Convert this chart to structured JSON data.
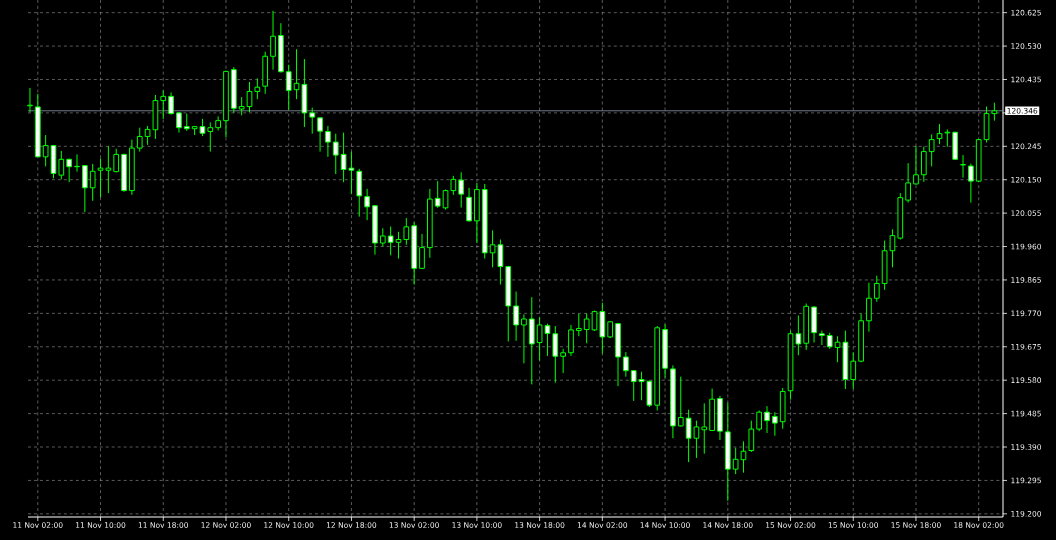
{
  "chart_data": {
    "type": "candlestick",
    "categories": [
      null,
      "11 Nov 02:00",
      null,
      null,
      null,
      null,
      null,
      null,
      null,
      "11 Nov 10:00",
      null,
      null,
      null,
      null,
      null,
      null,
      null,
      "11 Nov 18:00",
      null,
      null,
      null,
      null,
      null,
      null,
      null,
      "12 Nov 02:00",
      null,
      null,
      null,
      null,
      null,
      null,
      null,
      "12 Nov 10:00",
      null,
      null,
      null,
      null,
      null,
      null,
      null,
      "12 Nov 18:00",
      null,
      null,
      null,
      null,
      null,
      null,
      null,
      "13 Nov 02:00",
      null,
      null,
      null,
      null,
      null,
      null,
      null,
      "13 Nov 10:00",
      null,
      null,
      null,
      null,
      null,
      null,
      null,
      "13 Nov 18:00",
      null,
      null,
      null,
      null,
      null,
      null,
      null,
      "14 Nov 02:00",
      null,
      null,
      null,
      null,
      null,
      null,
      null,
      "14 Nov 10:00",
      null,
      null,
      null,
      null,
      null,
      null,
      null,
      "14 Nov 18:00",
      null,
      null,
      null,
      null,
      null,
      null,
      null,
      "15 Nov 02:00",
      null,
      null,
      null,
      null,
      null,
      null,
      null,
      "15 Nov 10:00",
      null,
      null,
      null,
      null,
      null,
      null,
      null,
      "15 Nov 18:00",
      null,
      null,
      null,
      null,
      null,
      null,
      null,
      "18 Nov 02:00",
      null,
      null
    ],
    "ohlc": [
      [
        120.36,
        120.411,
        120.342,
        120.362
      ],
      [
        120.357,
        120.394,
        120.215,
        120.215
      ],
      [
        120.215,
        120.277,
        120.188,
        120.247
      ],
      [
        120.247,
        120.249,
        120.154,
        120.168
      ],
      [
        120.163,
        120.232,
        120.151,
        120.208
      ],
      [
        120.208,
        120.21,
        120.143,
        120.187
      ],
      [
        120.188,
        120.222,
        120.173,
        120.187
      ],
      [
        120.19,
        120.192,
        120.058,
        120.127
      ],
      [
        120.127,
        120.195,
        120.09,
        120.174
      ],
      [
        120.177,
        120.21,
        120.1,
        120.183
      ],
      [
        120.177,
        120.246,
        120.112,
        120.183
      ],
      [
        120.173,
        120.238,
        120.171,
        120.222
      ],
      [
        120.222,
        120.224,
        120.116,
        120.119
      ],
      [
        120.119,
        120.264,
        120.107,
        120.24
      ],
      [
        120.24,
        120.298,
        120.23,
        120.273
      ],
      [
        120.273,
        120.303,
        120.249,
        120.293
      ],
      [
        120.292,
        120.391,
        120.266,
        120.375
      ],
      [
        120.375,
        120.404,
        120.323,
        120.387
      ],
      [
        120.387,
        120.398,
        120.335,
        120.338
      ],
      [
        120.34,
        120.342,
        120.284,
        120.298
      ],
      [
        120.301,
        120.338,
        120.289,
        120.295
      ],
      [
        120.295,
        120.303,
        120.277,
        120.301
      ],
      [
        120.301,
        120.323,
        120.274,
        120.282
      ],
      [
        120.287,
        120.313,
        120.23,
        120.298
      ],
      [
        120.298,
        120.33,
        120.29,
        120.318
      ],
      [
        120.318,
        120.46,
        120.271,
        120.458
      ],
      [
        120.463,
        120.47,
        120.34,
        120.353
      ],
      [
        120.351,
        120.385,
        120.333,
        120.358
      ],
      [
        120.358,
        120.428,
        120.342,
        120.401
      ],
      [
        120.401,
        120.438,
        120.379,
        120.413
      ],
      [
        120.416,
        120.514,
        120.394,
        120.501
      ],
      [
        120.501,
        120.63,
        120.463,
        120.558
      ],
      [
        120.56,
        120.595,
        120.455,
        120.457
      ],
      [
        120.457,
        120.477,
        120.349,
        120.404
      ],
      [
        120.406,
        120.521,
        120.379,
        120.424
      ],
      [
        120.421,
        120.493,
        120.3,
        120.34
      ],
      [
        120.34,
        120.355,
        120.281,
        120.328
      ],
      [
        120.326,
        120.328,
        120.23,
        120.288
      ],
      [
        120.287,
        120.303,
        120.215,
        120.257
      ],
      [
        120.257,
        120.281,
        120.166,
        120.22
      ],
      [
        120.222,
        120.284,
        120.143,
        120.179
      ],
      [
        120.183,
        120.23,
        120.11,
        120.177
      ],
      [
        120.174,
        120.181,
        120.045,
        120.104
      ],
      [
        120.102,
        120.124,
        120.035,
        120.073
      ],
      [
        120.076,
        120.078,
        119.937,
        119.97
      ],
      [
        119.97,
        120.012,
        119.96,
        119.99
      ],
      [
        119.99,
        120.017,
        119.935,
        119.972
      ],
      [
        119.972,
        120.002,
        119.926,
        119.98
      ],
      [
        119.98,
        120.041,
        119.965,
        120.016
      ],
      [
        120.019,
        120.029,
        119.852,
        119.898
      ],
      [
        119.898,
        119.996,
        119.896,
        119.957
      ],
      [
        119.957,
        120.124,
        119.928,
        120.095
      ],
      [
        120.097,
        120.146,
        120.07,
        120.075
      ],
      [
        120.07,
        120.122,
        120.065,
        120.119
      ],
      [
        120.119,
        120.161,
        120.107,
        120.151
      ],
      [
        120.149,
        120.171,
        120.071,
        120.109
      ],
      [
        120.1,
        120.127,
        120.031,
        120.033
      ],
      [
        120.033,
        120.141,
        119.97,
        120.122
      ],
      [
        120.122,
        120.138,
        119.926,
        119.942
      ],
      [
        119.942,
        120.006,
        119.901,
        119.965
      ],
      [
        119.965,
        119.98,
        119.852,
        119.903
      ],
      [
        119.903,
        119.905,
        119.69,
        119.791
      ],
      [
        119.791,
        119.832,
        119.692,
        119.737
      ],
      [
        119.737,
        119.767,
        119.628,
        119.754
      ],
      [
        119.754,
        119.816,
        119.568,
        119.683
      ],
      [
        119.687,
        119.759,
        119.636,
        119.737
      ],
      [
        119.735,
        119.741,
        119.649,
        119.713
      ],
      [
        119.712,
        119.734,
        119.573,
        119.648
      ],
      [
        119.648,
        119.669,
        119.6,
        119.658
      ],
      [
        119.658,
        119.737,
        119.649,
        119.723
      ],
      [
        119.721,
        119.769,
        119.705,
        119.727
      ],
      [
        119.724,
        119.77,
        119.685,
        119.754
      ],
      [
        119.723,
        119.778,
        119.72,
        119.775
      ],
      [
        119.775,
        119.8,
        119.656,
        119.703
      ],
      [
        119.703,
        119.748,
        119.7,
        119.746
      ],
      [
        119.741,
        119.743,
        119.563,
        119.646
      ],
      [
        119.646,
        119.66,
        119.59,
        119.607
      ],
      [
        119.607,
        119.609,
        119.521,
        119.576
      ],
      [
        119.582,
        119.604,
        119.523,
        119.576
      ],
      [
        119.577,
        119.579,
        119.504,
        119.509
      ],
      [
        119.509,
        119.734,
        119.494,
        119.729
      ],
      [
        119.724,
        119.739,
        119.587,
        119.614
      ],
      [
        119.612,
        119.622,
        119.415,
        119.45
      ],
      [
        119.45,
        119.59,
        119.448,
        119.474
      ],
      [
        119.472,
        119.496,
        119.347,
        119.415
      ],
      [
        119.415,
        119.465,
        119.359,
        119.447
      ],
      [
        119.439,
        119.514,
        119.371,
        119.447
      ],
      [
        119.437,
        119.556,
        119.435,
        119.526
      ],
      [
        119.528,
        119.535,
        119.41,
        119.435
      ],
      [
        119.433,
        119.516,
        119.237,
        119.327
      ],
      [
        119.327,
        119.388,
        119.313,
        119.355
      ],
      [
        119.354,
        119.406,
        119.317,
        119.378
      ],
      [
        119.38,
        119.465,
        119.376,
        119.441
      ],
      [
        119.441,
        119.494,
        119.435,
        119.489
      ],
      [
        119.489,
        119.506,
        119.43,
        119.465
      ],
      [
        119.477,
        119.489,
        119.422,
        119.458
      ],
      [
        119.462,
        119.558,
        119.442,
        119.548
      ],
      [
        119.55,
        119.721,
        119.525,
        119.712
      ],
      [
        119.712,
        119.764,
        119.651,
        119.683
      ],
      [
        119.685,
        119.798,
        119.666,
        119.79
      ],
      [
        119.788,
        119.79,
        119.687,
        119.715
      ],
      [
        119.712,
        119.721,
        119.68,
        119.707
      ],
      [
        119.707,
        119.715,
        119.669,
        119.675
      ],
      [
        119.673,
        119.705,
        119.631,
        119.688
      ],
      [
        119.688,
        119.721,
        119.555,
        119.582
      ],
      [
        119.582,
        119.659,
        119.555,
        119.634
      ],
      [
        119.634,
        119.769,
        119.631,
        119.749
      ],
      [
        119.749,
        119.857,
        119.718,
        119.813
      ],
      [
        119.813,
        119.877,
        119.803,
        119.855
      ],
      [
        119.855,
        119.977,
        119.837,
        119.948
      ],
      [
        119.948,
        120.009,
        119.901,
        119.991
      ],
      [
        119.984,
        120.112,
        119.98,
        120.099
      ],
      [
        120.092,
        120.197,
        120.085,
        120.141
      ],
      [
        120.138,
        120.246,
        120.136,
        120.164
      ],
      [
        120.164,
        120.244,
        120.144,
        120.23
      ],
      [
        120.23,
        120.279,
        120.188,
        120.264
      ],
      [
        120.267,
        120.308,
        120.251,
        120.281
      ],
      [
        120.283,
        120.293,
        120.244,
        120.285
      ],
      [
        120.285,
        120.286,
        120.207,
        120.208
      ],
      [
        120.193,
        120.22,
        120.156,
        120.192
      ],
      [
        120.189,
        120.196,
        120.085,
        120.146
      ],
      [
        120.146,
        120.266,
        120.143,
        120.264
      ],
      [
        120.264,
        120.358,
        120.256,
        120.338
      ],
      [
        120.338,
        120.369,
        120.318,
        120.346
      ]
    ],
    "color": "#00ff00",
    "colors": [
      "#000000",
      "#ffffff",
      "#000000",
      "#ffffff",
      "#000000",
      "#ffffff",
      "#ffffff",
      "#ffffff",
      "#000000",
      "#000000",
      "#000000",
      "#000000",
      "#ffffff",
      "#000000",
      "#000000",
      "#000000",
      "#000000",
      "#000000",
      "#ffffff",
      "#ffffff",
      "#ffffff",
      "#000000",
      "#ffffff",
      "#000000",
      "#000000",
      "#000000",
      "#ffffff",
      "#000000",
      "#000000",
      "#000000",
      "#000000",
      "#000000",
      "#ffffff",
      "#ffffff",
      "#000000",
      "#ffffff",
      "#ffffff",
      "#ffffff",
      "#ffffff",
      "#ffffff",
      "#ffffff",
      "#ffffff",
      "#ffffff",
      "#ffffff",
      "#ffffff",
      "#000000",
      "#ffffff",
      "#000000",
      "#000000",
      "#ffffff",
      "#000000",
      "#000000",
      "#ffffff",
      "#000000",
      "#000000",
      "#ffffff",
      "#ffffff",
      "#000000",
      "#ffffff",
      "#000000",
      "#ffffff",
      "#ffffff",
      "#ffffff",
      "#000000",
      "#ffffff",
      "#000000",
      "#ffffff",
      "#ffffff",
      "#000000",
      "#000000",
      "#000000",
      "#000000",
      "#000000",
      "#ffffff",
      "#000000",
      "#ffffff",
      "#ffffff",
      "#ffffff",
      "#ffffff",
      "#ffffff",
      "#000000",
      "#ffffff",
      "#ffffff",
      "#000000",
      "#ffffff",
      "#000000",
      "#000000",
      "#000000",
      "#ffffff",
      "#ffffff",
      "#000000",
      "#000000",
      "#000000",
      "#000000",
      "#ffffff",
      "#ffffff",
      "#000000",
      "#000000",
      "#ffffff",
      "#000000",
      "#ffffff",
      "#ffffff",
      "#ffffff",
      "#000000",
      "#ffffff",
      "#000000",
      "#000000",
      "#000000",
      "#000000",
      "#000000",
      "#000000",
      "#000000",
      "#000000",
      "#000000",
      "#000000",
      "#000000",
      "#000000",
      "#000000",
      "#ffffff",
      "#ffffff",
      "#ffffff",
      "#000000",
      "#000000",
      "#000000"
    ],
    "ylim": [
      119.191,
      120.661
    ],
    "yticks": [
      {
        "value": 119.2,
        "label": "119.200"
      },
      {
        "value": 119.295,
        "label": "119.295"
      },
      {
        "value": 119.39,
        "label": "119.390"
      },
      {
        "value": 119.485,
        "label": "119.485"
      },
      {
        "value": 119.58,
        "label": "119.580"
      },
      {
        "value": 119.675,
        "label": "119.675"
      },
      {
        "value": 119.77,
        "label": "119.770"
      },
      {
        "value": 119.865,
        "label": "119.865"
      },
      {
        "value": 119.96,
        "label": "119.960"
      },
      {
        "value": 120.055,
        "label": "120.055"
      },
      {
        "value": 120.15,
        "label": "120.150"
      },
      {
        "value": 120.245,
        "label": "120.245"
      },
      {
        "value": 120.34,
        "label": null
      },
      {
        "value": 120.435,
        "label": "120.435"
      },
      {
        "value": 120.53,
        "label": "120.530"
      },
      {
        "value": 120.625,
        "label": "120.625"
      }
    ],
    "grid": true,
    "ref_lines": [
      {
        "axis": "y",
        "value": 120.346,
        "label": "120.346",
        "color": "#8c9aa8"
      }
    ]
  }
}
